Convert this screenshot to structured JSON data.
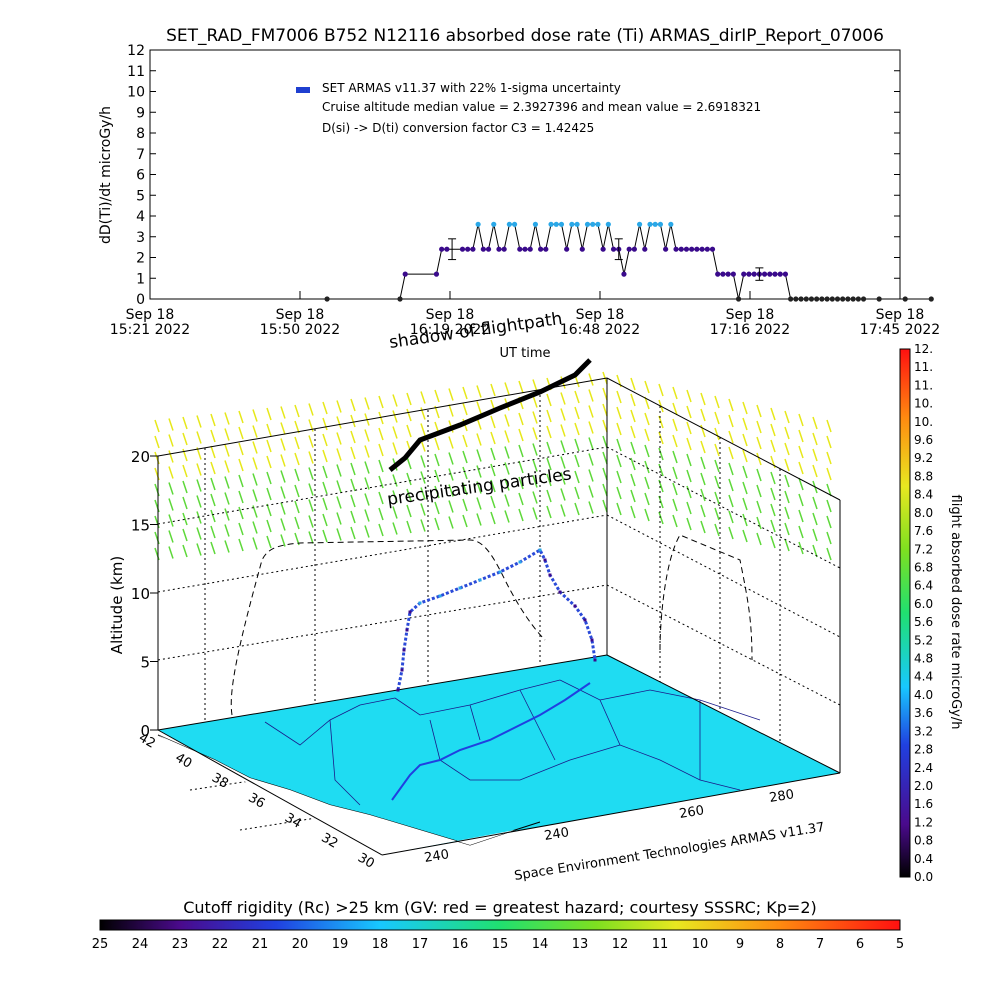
{
  "title": "SET_RAD_FM7006  B752 N12116 absorbed dose rate (Ti) ARMAS_dirIP_Report_07006",
  "chart_data": [
    {
      "type": "line",
      "title": "SET_RAD_FM7006  B752 N12116 absorbed dose rate (Ti) ARMAS_dirIP_Report_07006",
      "ylabel": "dD(Ti)/dt microGy/h",
      "xlabel": "UT time",
      "ylim": [
        0,
        12
      ],
      "yticks": [
        "0",
        "1",
        "2",
        "3",
        "4",
        "5",
        "6",
        "7",
        "8",
        "9",
        "10",
        "11",
        "12"
      ],
      "xticks": [
        {
          "line1": "Sep 18",
          "line2": "15:21 2022"
        },
        {
          "line1": "Sep 18",
          "line2": "15:50 2022"
        },
        {
          "line1": "Sep 18",
          "line2": "16:19 2022"
        },
        {
          "line1": "Sep 18",
          "line2": "16:48 2022"
        },
        {
          "line1": "Sep 18",
          "line2": "17:16 2022"
        },
        {
          "line1": "Sep 18",
          "line2": "17:45 2022"
        }
      ],
      "x_minutes_after_1521": [
        34,
        48,
        49,
        55,
        56,
        57,
        60,
        61,
        62,
        63,
        64,
        65,
        66,
        67,
        68,
        69,
        70,
        71,
        72,
        73,
        74,
        75,
        76,
        77,
        78,
        79,
        80,
        81,
        82,
        83,
        84,
        85,
        86,
        87,
        88,
        89,
        90,
        91,
        92,
        93,
        94,
        95,
        96,
        97,
        98,
        99,
        100,
        101,
        102,
        103,
        104,
        105,
        106,
        107,
        108,
        109,
        110,
        111,
        112,
        113,
        114,
        115,
        116,
        117,
        118,
        119,
        120,
        121,
        122,
        123,
        124,
        125,
        126,
        127,
        128,
        129,
        130,
        131,
        132,
        133,
        134,
        135,
        136,
        137,
        140,
        145,
        150
      ],
      "series": [
        {
          "name": "SET ARMAS v11.37 with 22% 1-sigma uncertainty",
          "values": [
            0,
            0,
            1.2,
            1.2,
            2.4,
            2.4,
            2.4,
            2.4,
            2.4,
            3.6,
            2.4,
            2.4,
            3.6,
            2.4,
            2.4,
            3.6,
            3.6,
            2.4,
            2.4,
            2.4,
            3.6,
            2.4,
            2.4,
            3.6,
            3.6,
            3.6,
            2.4,
            3.6,
            3.6,
            2.4,
            3.6,
            3.6,
            3.6,
            2.4,
            3.6,
            2.4,
            2.4,
            1.2,
            2.4,
            2.4,
            3.6,
            2.4,
            3.6,
            3.6,
            3.6,
            2.4,
            3.6,
            2.4,
            2.4,
            2.4,
            2.4,
            2.4,
            2.4,
            2.4,
            2.4,
            1.2,
            1.2,
            1.2,
            1.2,
            0,
            1.2,
            1.2,
            1.2,
            1.2,
            1.2,
            1.2,
            1.2,
            1.2,
            1.2,
            0,
            0,
            0,
            0,
            0,
            0,
            0,
            0,
            0,
            0,
            0,
            0,
            0,
            0,
            0,
            0,
            0,
            0
          ]
        }
      ],
      "error_bars": [
        {
          "x_minutes_after_1521": 58,
          "value": 2.4,
          "low": 1.9,
          "high": 2.9
        },
        {
          "x_minutes_after_1521": 90,
          "value": 2.4,
          "low": 1.9,
          "high": 2.9
        },
        {
          "x_minutes_after_1521": 117,
          "value": 1.2,
          "low": 0.9,
          "high": 1.5
        }
      ],
      "annotations": [
        "Cruise altitude median value = 2.3927396 and mean value = 2.6918321",
        "D(si) -> D(ti) conversion factor C3 = 1.42425"
      ],
      "marker_colors": {
        "low": "#3a0a8c",
        "high": "#2aa8e8",
        "zero": "#222222"
      },
      "legend": "top-left"
    },
    {
      "type": "scatter",
      "title": "",
      "zlabel": "Altitude (km)",
      "zlim": [
        0,
        20
      ],
      "zticks": [
        "0",
        "5",
        "10",
        "15",
        "20"
      ],
      "ylabel_ticks": [
        "42",
        "40",
        "38",
        "36",
        "34",
        "32",
        "30"
      ],
      "xlabel_ticks": [
        "240",
        "240",
        "260",
        "280"
      ],
      "annotations": [
        "shadow of flightpath",
        "precipitating particles"
      ],
      "credit": "Space Environment Technologies ARMAS v11.37",
      "colorbar_label": "flight absorbed dose rate microGy/h",
      "colorbar_ticks": [
        "0.0",
        "0.4",
        "0.8",
        "1.2",
        "1.6",
        "2.0",
        "2.4",
        "2.8",
        "3.2",
        "3.6",
        "4.0",
        "4.4",
        "4.8",
        "5.2",
        "5.6",
        "6.0",
        "6.4",
        "6.8",
        "7.2",
        "7.6",
        "8.0",
        "8.4",
        "8.8",
        "9.2",
        "9.6",
        "10.",
        "10.",
        "11.",
        "11.",
        "12."
      ],
      "flight_profile_km": [
        0,
        1,
        3,
        5,
        7,
        9,
        10.5,
        11,
        11.5,
        12,
        12.5,
        12.5,
        12,
        11,
        9,
        7,
        6,
        5.5
      ]
    },
    {
      "type": "heatmap",
      "title": "Cutoff rigidity (Rc) >25 km (GV: red = greatest hazard; courtesy SSSRC; Kp=2)",
      "colorbar_ticks": [
        "25",
        "24",
        "23",
        "22",
        "21",
        "20",
        "19",
        "18",
        "17",
        "16",
        "15",
        "14",
        "13",
        "12",
        "11",
        "10",
        "9",
        "8",
        "7",
        "6",
        "5"
      ]
    }
  ],
  "colors": {
    "map_fill": "#1fdcf2",
    "flight_low": "#3a0a8c",
    "flight_high": "#2aa8e8",
    "precip_yellow": "#e6e81a",
    "precip_green": "#5ed83a"
  }
}
